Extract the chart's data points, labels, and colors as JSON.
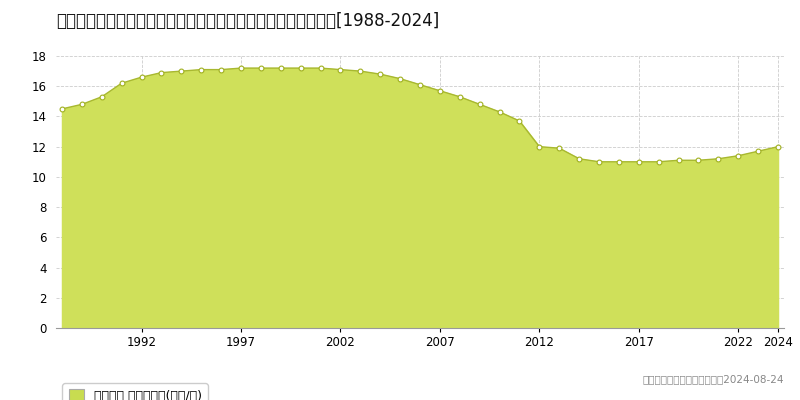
{
  "title": "佐賀県鳥栖市加藤田町２丁目１５０番７　地価公示　地価推移[1988-2024]",
  "years": [
    1988,
    1989,
    1990,
    1991,
    1992,
    1993,
    1994,
    1995,
    1996,
    1997,
    1998,
    1999,
    2000,
    2001,
    2002,
    2003,
    2004,
    2005,
    2006,
    2007,
    2008,
    2009,
    2010,
    2011,
    2012,
    2013,
    2014,
    2015,
    2016,
    2017,
    2018,
    2019,
    2020,
    2021,
    2022,
    2023,
    2024
  ],
  "values": [
    14.5,
    14.8,
    15.3,
    16.2,
    16.6,
    16.9,
    17.0,
    17.1,
    17.1,
    17.2,
    17.2,
    17.2,
    17.2,
    17.2,
    17.1,
    17.0,
    16.8,
    16.5,
    16.1,
    15.7,
    15.3,
    14.8,
    14.3,
    13.7,
    12.0,
    11.9,
    11.2,
    11.0,
    11.0,
    11.0,
    11.0,
    11.1,
    11.1,
    11.2,
    11.4,
    11.7,
    12.0
  ],
  "fill_color": "#cfe05a",
  "line_color": "#a8b830",
  "marker_facecolor": "#ffffff",
  "marker_edgecolor": "#a0b020",
  "background_color": "#ffffff",
  "plot_bg_color": "#ffffff",
  "grid_color": "#cccccc",
  "ylim": [
    0,
    18
  ],
  "yticks": [
    0,
    2,
    4,
    6,
    8,
    10,
    12,
    14,
    16,
    18
  ],
  "xtick_positions": [
    1992,
    1997,
    2002,
    2007,
    2012,
    2017,
    2022,
    2024
  ],
  "legend_label": "地価公示 平均啶単価(万円/啶)",
  "legend_square_color": "#c8dc50",
  "copyright_text": "（Ｃ）土地価格ドットコム　2024-08-24",
  "title_fontsize": 12,
  "legend_fontsize": 9,
  "tick_fontsize": 8.5,
  "copyright_fontsize": 7.5
}
